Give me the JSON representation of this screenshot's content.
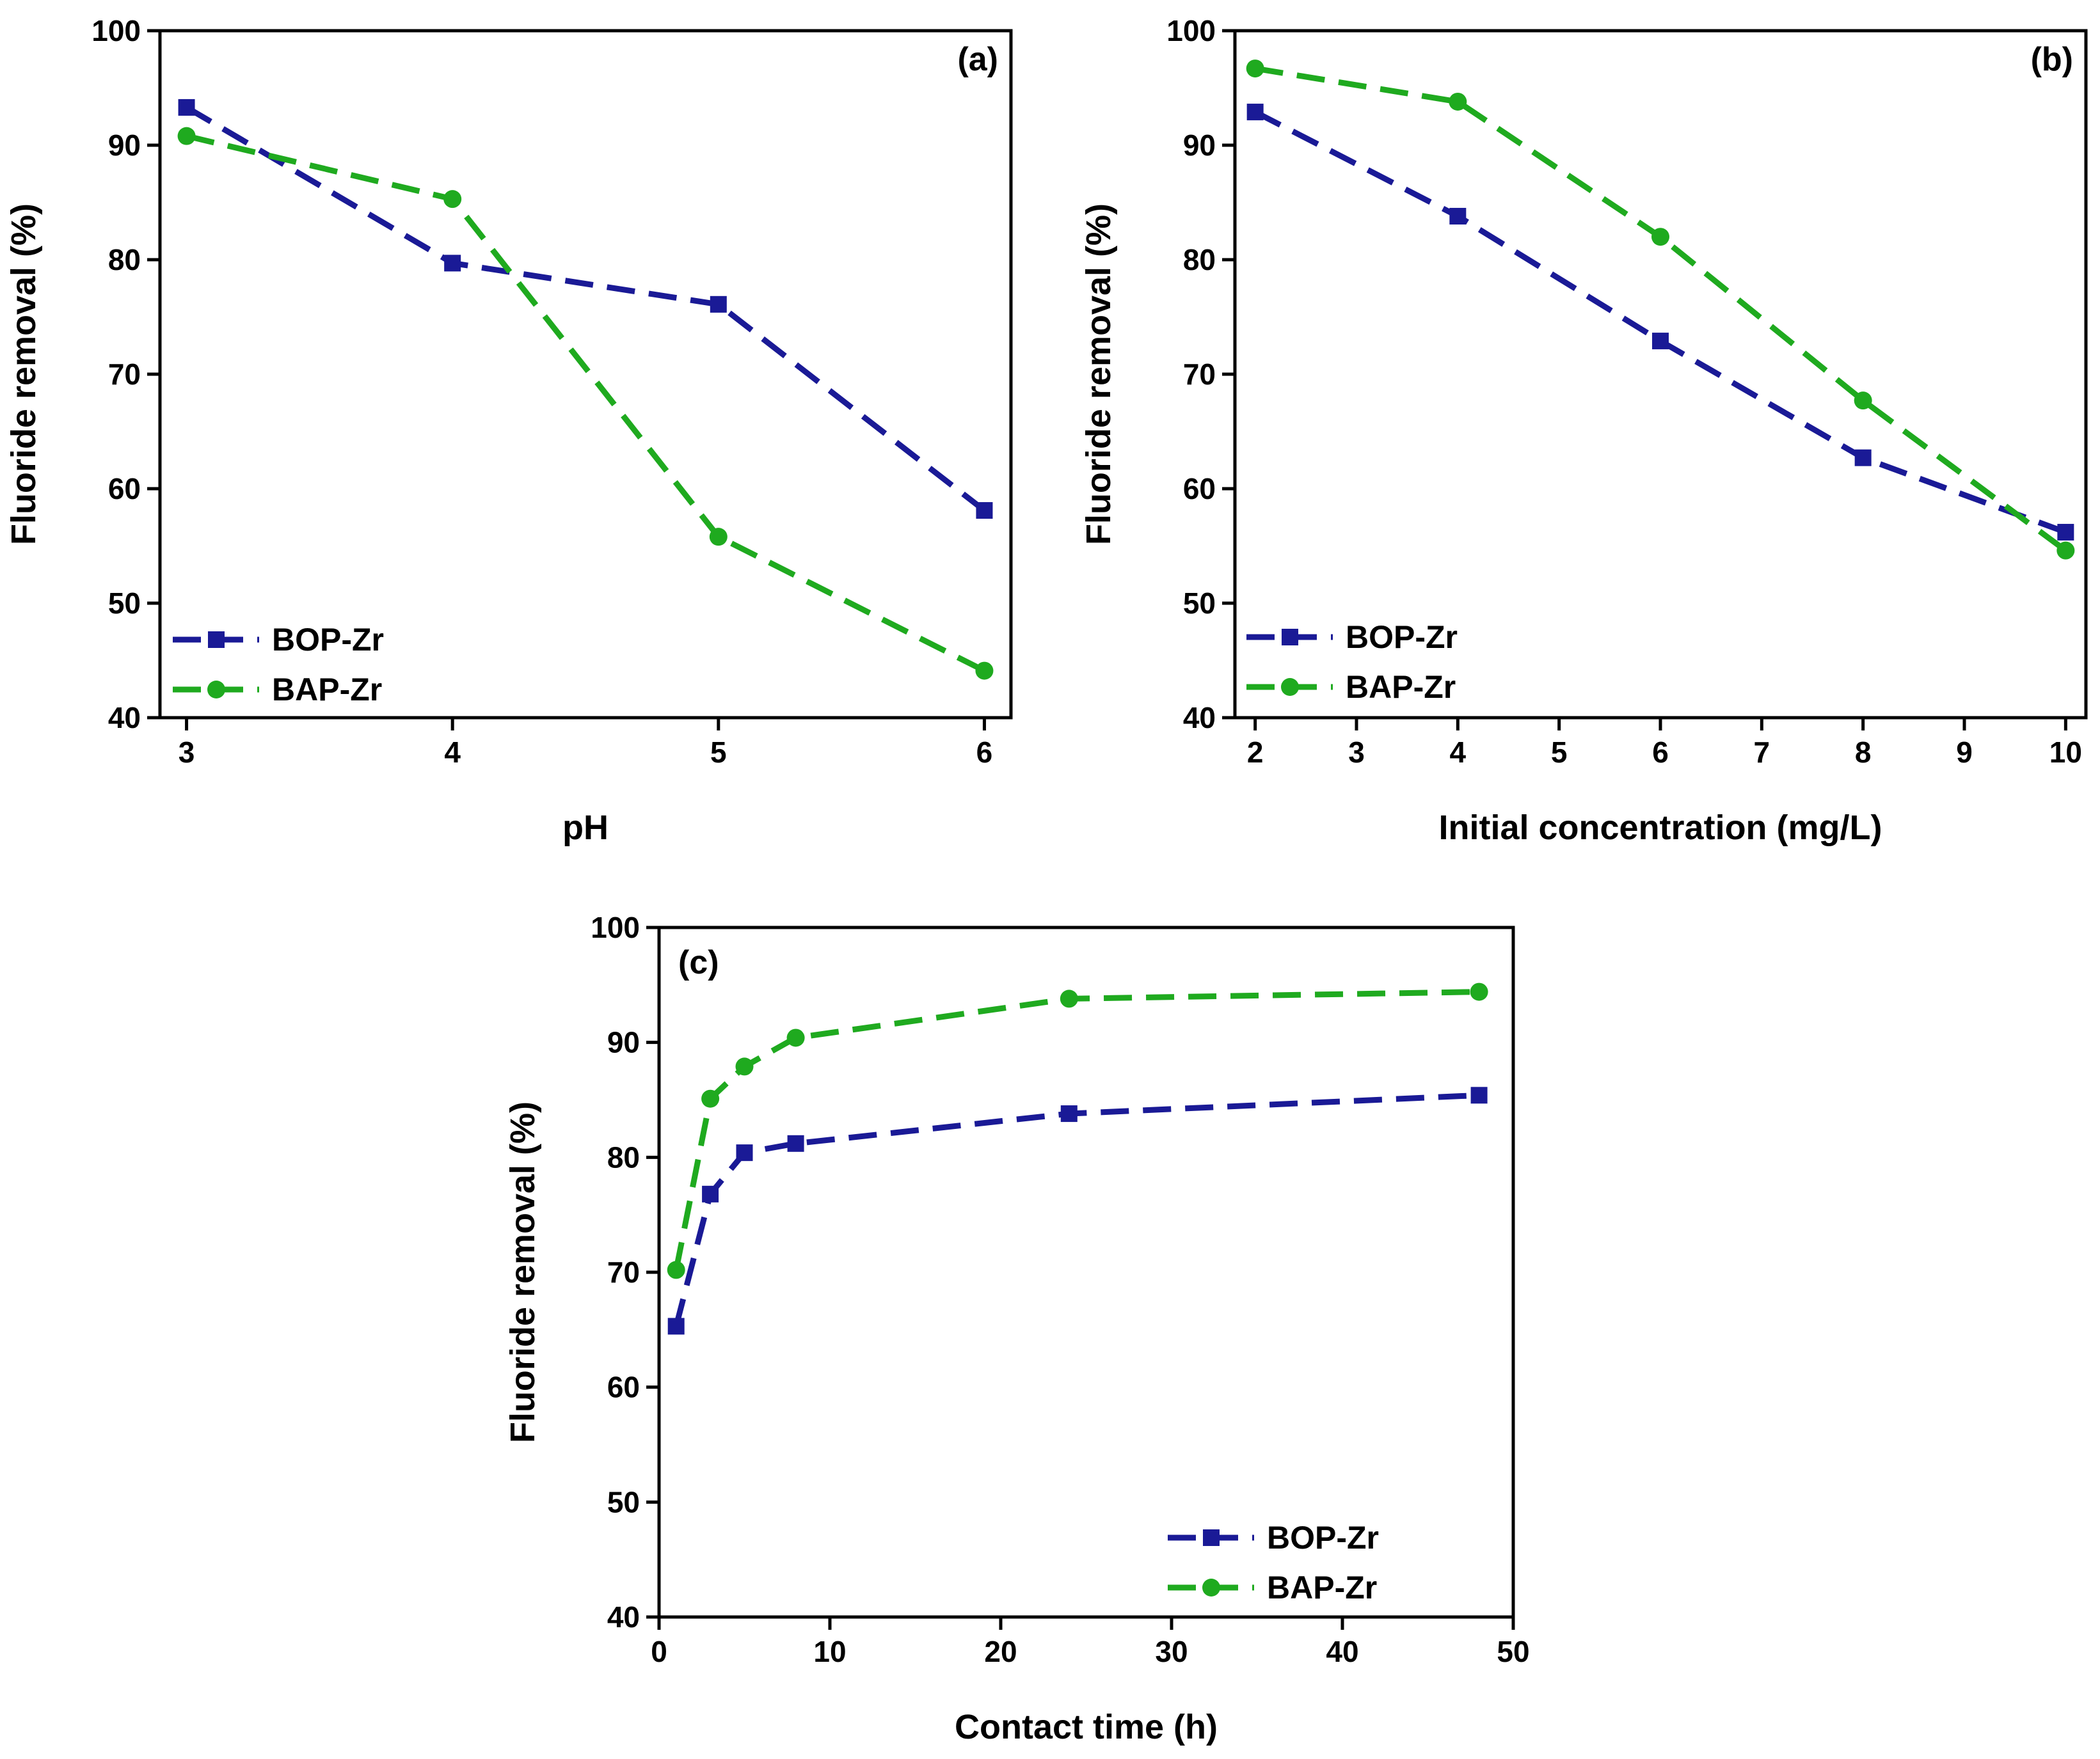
{
  "colors": {
    "BOP-Zr": "#1a1a96",
    "BAP-Zr": "#1faa1f"
  },
  "chart_data": [
    {
      "type": "line",
      "panel_label": "(a)",
      "xlabel": "pH",
      "ylabel": "Fluoride removal (%)",
      "xlim": [
        2.9,
        6.1
      ],
      "ylim": [
        40,
        100
      ],
      "xticks": [
        3,
        4,
        5,
        6
      ],
      "yticks": [
        40,
        50,
        60,
        70,
        80,
        90,
        100
      ],
      "legend_position": "bottom-left",
      "series": [
        {
          "name": "BOP-Zr",
          "marker": "square",
          "x": [
            3,
            4,
            5,
            6
          ],
          "values": [
            93.3,
            79.7,
            76.1,
            58.1
          ]
        },
        {
          "name": "BAP-Zr",
          "marker": "circle",
          "x": [
            3,
            4,
            5,
            6
          ],
          "values": [
            90.8,
            85.3,
            55.8,
            44.1
          ]
        }
      ]
    },
    {
      "type": "line",
      "panel_label": "(b)",
      "xlabel": "Initial concentration (mg/L)",
      "ylabel": "Fluoride removal (%)",
      "xlim": [
        1.8,
        10.2
      ],
      "ylim": [
        40,
        100
      ],
      "xticks": [
        2,
        3,
        4,
        5,
        6,
        7,
        8,
        9,
        10
      ],
      "yticks": [
        40,
        50,
        60,
        70,
        80,
        90,
        100
      ],
      "legend_position": "bottom-left",
      "series": [
        {
          "name": "BOP-Zr",
          "marker": "square",
          "x": [
            2,
            4,
            6,
            8,
            10
          ],
          "values": [
            92.9,
            83.8,
            72.9,
            62.7,
            56.2
          ]
        },
        {
          "name": "BAP-Zr",
          "marker": "circle",
          "x": [
            2,
            4,
            6,
            8,
            10
          ],
          "values": [
            96.7,
            93.8,
            82.0,
            67.7,
            54.6
          ]
        }
      ]
    },
    {
      "type": "line",
      "panel_label": "(c)",
      "xlabel": "Contact time (h)",
      "ylabel": "Fluoride removal (%)",
      "xlim": [
        0,
        50
      ],
      "ylim": [
        40,
        100
      ],
      "xticks": [
        0,
        10,
        20,
        30,
        40,
        50
      ],
      "yticks": [
        40,
        50,
        60,
        70,
        80,
        90,
        100
      ],
      "legend_position": "bottom-right",
      "series": [
        {
          "name": "BOP-Zr",
          "marker": "square",
          "x": [
            1,
            3,
            5,
            8,
            24,
            48
          ],
          "values": [
            65.3,
            76.8,
            80.4,
            81.2,
            83.8,
            85.4
          ]
        },
        {
          "name": "BAP-Zr",
          "marker": "circle",
          "x": [
            1,
            3,
            5,
            8,
            24,
            48
          ],
          "values": [
            70.2,
            85.1,
            87.9,
            90.4,
            93.8,
            94.4
          ]
        }
      ]
    }
  ]
}
